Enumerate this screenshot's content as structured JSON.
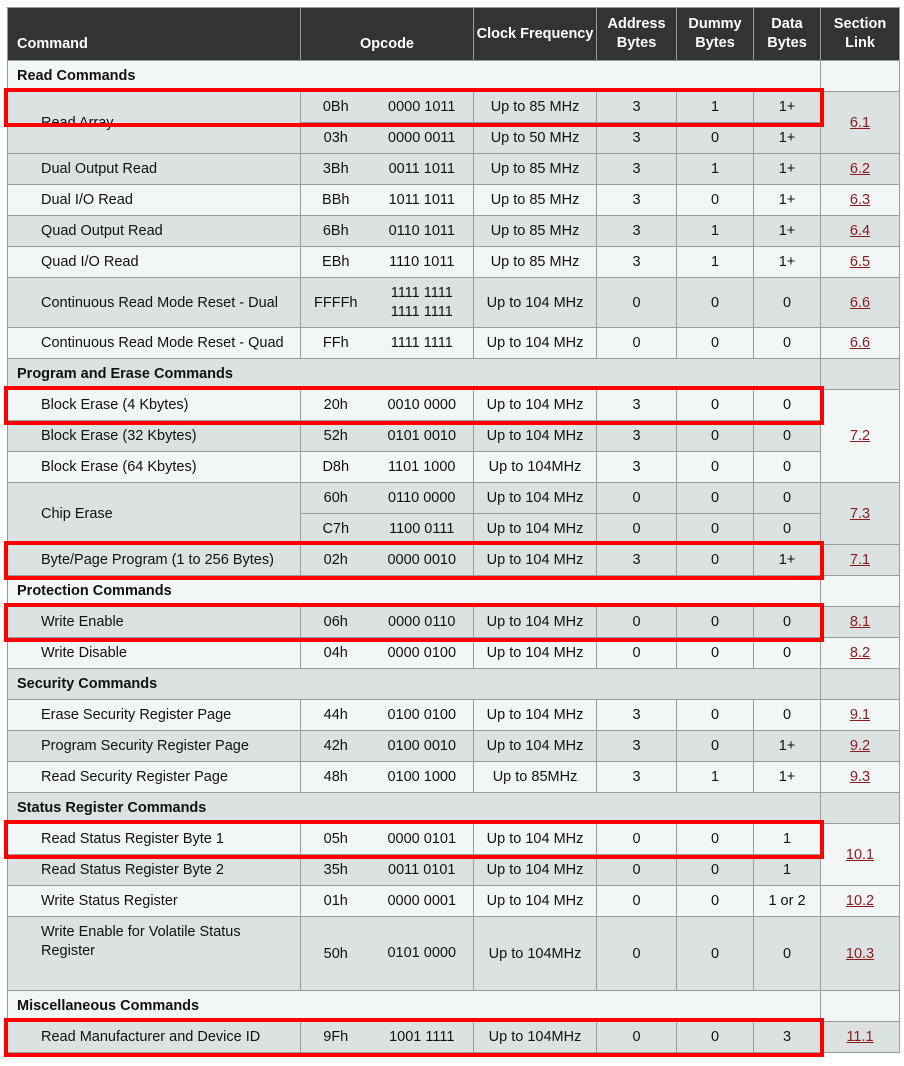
{
  "header": {
    "command": "Command",
    "opcode": "Opcode",
    "clock": "Clock Frequency",
    "address": "Address Bytes",
    "dummy": "Dummy Bytes",
    "data": "Data Bytes",
    "section": "Section Link"
  },
  "colors": {
    "header_bg": "#333333",
    "row_gray": "#dce2e2",
    "row_light": "#f3f6f7",
    "link": "#8b1a1a",
    "highlight": "#ff0000"
  },
  "sections": [
    {
      "title": "Read Commands",
      "commands": [
        {
          "name": "Read Array",
          "highlighted": true,
          "link": "6.1",
          "ops": [
            {
              "hex": "0Bh",
              "bin": "0000 1011",
              "clock": "Up to 85 MHz",
              "addr": "3",
              "dummy": "1",
              "data": "1+"
            },
            {
              "hex": "03h",
              "bin": "0000 0011",
              "clock": "Up to 50 MHz",
              "addr": "3",
              "dummy": "0",
              "data": "1+"
            }
          ]
        },
        {
          "name": "Dual Output Read",
          "link": "6.2",
          "ops": [
            {
              "hex": "3Bh",
              "bin": "0011 1011",
              "clock": "Up to 85 MHz",
              "addr": "3",
              "dummy": "1",
              "data": "1+"
            }
          ]
        },
        {
          "name": "Dual I/O Read",
          "link": "6.3",
          "ops": [
            {
              "hex": "BBh",
              "bin": "1011 1011",
              "clock": "Up to 85 MHz",
              "addr": "3",
              "dummy": "0",
              "data": "1+"
            }
          ]
        },
        {
          "name": "Quad Output Read",
          "link": "6.4",
          "ops": [
            {
              "hex": "6Bh",
              "bin": "0110 1011",
              "clock": "Up to 85 MHz",
              "addr": "3",
              "dummy": "1",
              "data": "1+"
            }
          ]
        },
        {
          "name": "Quad I/O Read",
          "link": "6.5",
          "ops": [
            {
              "hex": "EBh",
              "bin": "1110 1011",
              "clock": "Up to 85 MHz",
              "addr": "3",
              "dummy": "1",
              "data": "1+"
            }
          ]
        },
        {
          "name": "Continuous Read Mode Reset - Dual",
          "link": "6.6",
          "ops": [
            {
              "hex": "FFFFh",
              "bin": "1111 1111\n1111 1111",
              "clock": "Up to 104 MHz",
              "addr": "0",
              "dummy": "0",
              "data": "0"
            }
          ]
        },
        {
          "name": "Continuous Read Mode Reset - Quad",
          "link": "6.6",
          "ops": [
            {
              "hex": "FFh",
              "bin": "1111 1111",
              "clock": "Up to 104 MHz",
              "addr": "0",
              "dummy": "0",
              "data": "0"
            }
          ]
        }
      ]
    },
    {
      "title": "Program and Erase Commands",
      "commands": [
        {
          "name": "Block Erase (4 Kbytes)",
          "highlighted": true,
          "link": "7.2",
          "ops": [
            {
              "hex": "20h",
              "bin": "0010 0000",
              "clock": "Up to 104 MHz",
              "addr": "3",
              "dummy": "0",
              "data": "0"
            }
          ]
        },
        {
          "name": "Block Erase (32 Kbytes)",
          "link": null,
          "ops": [
            {
              "hex": "52h",
              "bin": "0101 0010",
              "clock": "Up to 104 MHz",
              "addr": "3",
              "dummy": "0",
              "data": "0"
            }
          ]
        },
        {
          "name": "Block Erase (64 Kbytes)",
          "link": null,
          "ops": [
            {
              "hex": "D8h",
              "bin": "1101 1000",
              "clock": "Up to 104MHz",
              "addr": "3",
              "dummy": "0",
              "data": "0"
            }
          ]
        },
        {
          "name": "Chip Erase",
          "link": "7.3",
          "ops": [
            {
              "hex": "60h",
              "bin": "0110 0000",
              "clock": "Up to 104 MHz",
              "addr": "0",
              "dummy": "0",
              "data": "0"
            },
            {
              "hex": "C7h",
              "bin": "1100 0111",
              "clock": "Up to 104 MHz",
              "addr": "0",
              "dummy": "0",
              "data": "0"
            }
          ]
        },
        {
          "name": "Byte/Page Program (1 to 256 Bytes)",
          "highlighted": true,
          "link": "7.1",
          "ops": [
            {
              "hex": "02h",
              "bin": "0000 0010",
              "clock": "Up to 104 MHz",
              "addr": "3",
              "dummy": "0",
              "data": "1+"
            }
          ]
        }
      ]
    },
    {
      "title": "Protection Commands",
      "commands": [
        {
          "name": "Write Enable",
          "highlighted": true,
          "link": "8.1",
          "ops": [
            {
              "hex": "06h",
              "bin": "0000 0110",
              "clock": "Up to 104 MHz",
              "addr": "0",
              "dummy": "0",
              "data": "0"
            }
          ]
        },
        {
          "name": "Write Disable",
          "link": "8.2",
          "ops": [
            {
              "hex": "04h",
              "bin": "0000 0100",
              "clock": "Up to 104 MHz",
              "addr": "0",
              "dummy": "0",
              "data": "0"
            }
          ]
        }
      ]
    },
    {
      "title": "Security Commands",
      "commands": [
        {
          "name": "Erase Security Register Page",
          "link": "9.1",
          "ops": [
            {
              "hex": "44h",
              "bin": "0100 0100",
              "clock": "Up to 104 MHz",
              "addr": "3",
              "dummy": "0",
              "data": "0"
            }
          ]
        },
        {
          "name": "Program Security Register Page",
          "link": "9.2",
          "ops": [
            {
              "hex": "42h",
              "bin": "0100 0010",
              "clock": "Up to 104 MHz",
              "addr": "3",
              "dummy": "0",
              "data": "1+"
            }
          ]
        },
        {
          "name": "Read Security Register Page",
          "link": "9.3",
          "ops": [
            {
              "hex": "48h",
              "bin": "0100 1000",
              "clock": "Up to 85MHz",
              "addr": "3",
              "dummy": "1",
              "data": "1+"
            }
          ]
        }
      ]
    },
    {
      "title": "Status Register Commands",
      "commands": [
        {
          "name": "Read Status Register Byte 1",
          "highlighted": true,
          "link": "10.1",
          "ops": [
            {
              "hex": "05h",
              "bin": "0000 0101",
              "clock": "Up to 104 MHz",
              "addr": "0",
              "dummy": "0",
              "data": "1"
            }
          ]
        },
        {
          "name": "Read Status Register Byte 2",
          "link": null,
          "ops": [
            {
              "hex": "35h",
              "bin": "0011 0101",
              "clock": "Up to 104 MHz",
              "addr": "0",
              "dummy": "0",
              "data": "1"
            }
          ]
        },
        {
          "name": "Write Status Register",
          "link": "10.2",
          "ops": [
            {
              "hex": "01h",
              "bin": "0000 0001",
              "clock": "Up to 104 MHz",
              "addr": "0",
              "dummy": "0",
              "data": "1 or 2"
            }
          ]
        },
        {
          "name": "Write Enable for Volatile Status Register",
          "link": "10.3",
          "ops": [
            {
              "hex": "50h",
              "bin": "0101 0000",
              "clock": "Up to 104MHz",
              "addr": "0",
              "dummy": "0",
              "data": "0"
            }
          ]
        }
      ]
    },
    {
      "title": "Miscellaneous Commands",
      "commands": [
        {
          "name": "Read Manufacturer and Device ID",
          "highlighted": true,
          "link": "11.1",
          "ops": [
            {
              "hex": "9Fh",
              "bin": "1001 1111",
              "clock": "Up to 104MHz",
              "addr": "0",
              "dummy": "0",
              "data": "3"
            }
          ]
        }
      ]
    }
  ]
}
